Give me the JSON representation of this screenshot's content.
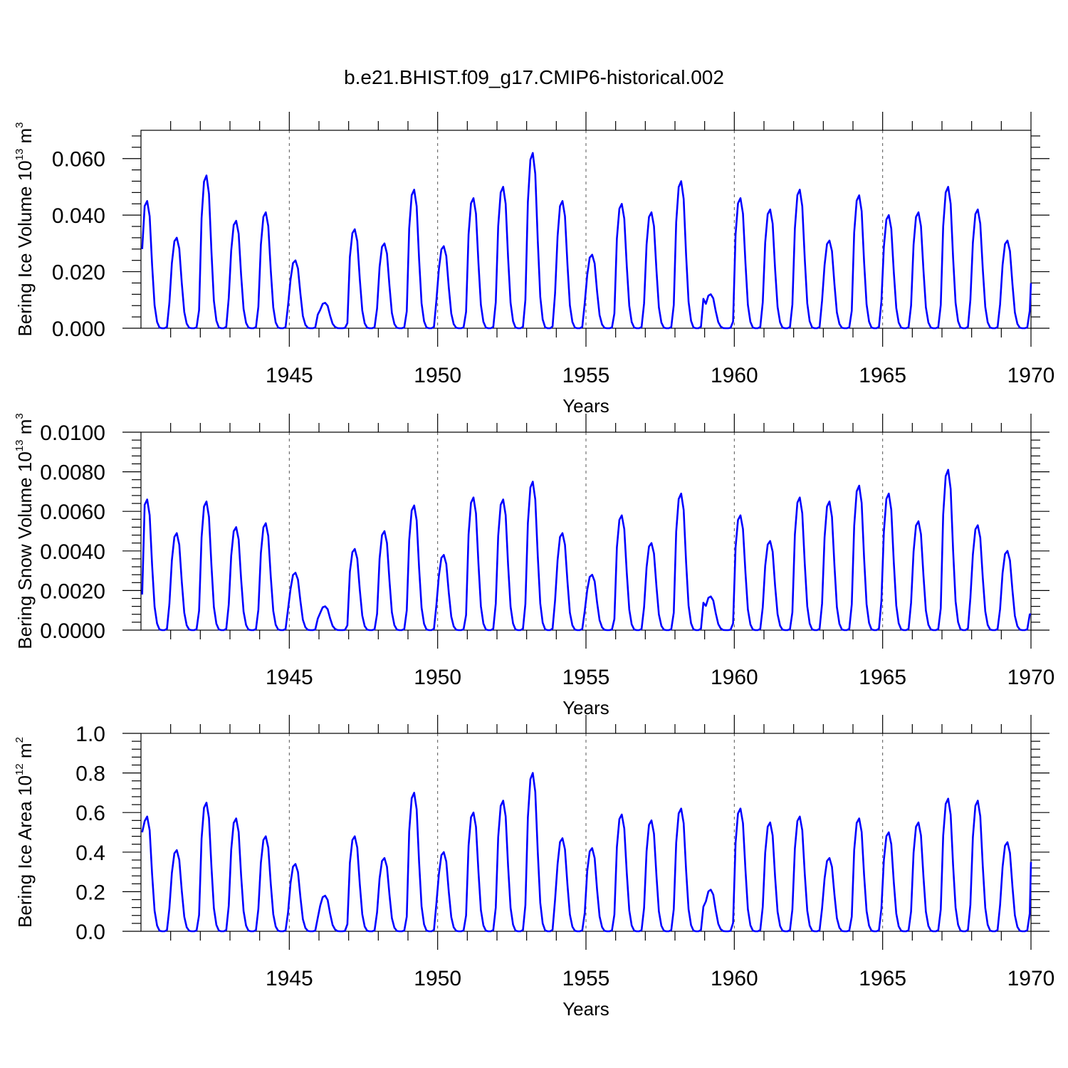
{
  "chart_data": {
    "type": "line",
    "title": "b.e21.BHIST.f09_g17.CMIP6-historical.002",
    "panels": [
      {
        "id": "ice-volume",
        "ylabel": "Bering Ice Volume 10",
        "ylabel_exp": "13",
        "ylabel_unit": " m",
        "ylabel_unit_exp": "3",
        "xlabel": "Years",
        "xlim": [
          1940,
          1970
        ],
        "ylim": [
          0,
          0.07
        ],
        "x_ticks": [
          "1945",
          "1950",
          "1955",
          "1960",
          "1965",
          "1970"
        ],
        "y_ticks": [
          "0.000",
          "0.020",
          "0.040",
          "0.060"
        ],
        "peaks": [
          0.045,
          0.032,
          0.054,
          0.038,
          0.041,
          0.024,
          0.009,
          0.035,
          0.03,
          0.049,
          0.029,
          0.046,
          0.05,
          0.062,
          0.045,
          0.026,
          0.044,
          0.041,
          0.052,
          0.012,
          0.046,
          0.042,
          0.049,
          0.031,
          0.047,
          0.04,
          0.041,
          0.05,
          0.042,
          0.031
        ],
        "start_value": 0.028,
        "end_value": 0.016
      },
      {
        "id": "snow-volume",
        "ylabel": "Bering Snow Volume 10",
        "ylabel_exp": "13",
        "ylabel_unit": " m",
        "ylabel_unit_exp": "3",
        "xlabel": "Years",
        "xlim": [
          1940,
          1970
        ],
        "ylim": [
          0,
          0.01
        ],
        "x_ticks": [
          "1945",
          "1950",
          "1955",
          "1960",
          "1965",
          "1970"
        ],
        "y_ticks": [
          "0.0000",
          "0.0020",
          "0.0040",
          "0.0060",
          "0.0080",
          "0.0100"
        ],
        "peaks": [
          0.0066,
          0.0049,
          0.0065,
          0.0052,
          0.0054,
          0.0029,
          0.0012,
          0.0041,
          0.005,
          0.0063,
          0.0038,
          0.0067,
          0.0066,
          0.0075,
          0.0049,
          0.0028,
          0.0058,
          0.0044,
          0.0069,
          0.0017,
          0.0058,
          0.0045,
          0.0067,
          0.0065,
          0.0073,
          0.0069,
          0.0055,
          0.0081,
          0.0053,
          0.004
        ],
        "start_value": 0.0018,
        "end_value": 0.0008
      },
      {
        "id": "ice-area",
        "ylabel": "Bering Ice Area 10",
        "ylabel_exp": "12",
        "ylabel_unit": " m",
        "ylabel_unit_exp": "2",
        "xlabel": "Years",
        "xlim": [
          1940,
          1970
        ],
        "ylim": [
          0,
          1.0
        ],
        "x_ticks": [
          "1945",
          "1950",
          "1955",
          "1960",
          "1965",
          "1970"
        ],
        "y_ticks": [
          "0.0",
          "0.2",
          "0.4",
          "0.6",
          "0.8",
          "1.0"
        ],
        "peaks": [
          0.58,
          0.41,
          0.65,
          0.57,
          0.48,
          0.34,
          0.18,
          0.48,
          0.37,
          0.7,
          0.4,
          0.6,
          0.66,
          0.8,
          0.47,
          0.42,
          0.59,
          0.56,
          0.62,
          0.21,
          0.62,
          0.55,
          0.58,
          0.37,
          0.57,
          0.5,
          0.55,
          0.67,
          0.66,
          0.45
        ],
        "start_value": 0.5,
        "end_value": 0.35
      }
    ]
  }
}
